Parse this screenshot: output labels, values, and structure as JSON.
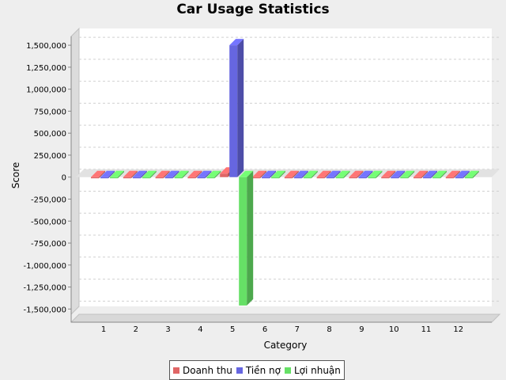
{
  "chart_data": {
    "type": "bar",
    "title": "Car Usage Statistics",
    "xlabel": "Category",
    "ylabel": "Score",
    "categories": [
      "1",
      "2",
      "3",
      "4",
      "5",
      "6",
      "7",
      "8",
      "9",
      "10",
      "11",
      "12"
    ],
    "series": [
      {
        "name": "Doanh thu",
        "color": "#e06666",
        "values": [
          0,
          0,
          0,
          0,
          40000,
          0,
          0,
          0,
          0,
          0,
          0,
          0
        ]
      },
      {
        "name": "Tiền nợ",
        "color": "#6666e0",
        "values": [
          0,
          0,
          0,
          0,
          1500000,
          0,
          0,
          0,
          0,
          0,
          0,
          0
        ]
      },
      {
        "name": "Lợi nhuận",
        "color": "#66e066",
        "values": [
          0,
          0,
          0,
          0,
          -1460000,
          0,
          0,
          0,
          0,
          0,
          0,
          0
        ]
      }
    ],
    "ylim": [
      -1500000,
      1500000
    ],
    "yticks": [
      {
        "value": 1500000,
        "label": "1,500,000"
      },
      {
        "value": 1250000,
        "label": "1,250,000"
      },
      {
        "value": 1000000,
        "label": "1,000,000"
      },
      {
        "value": 750000,
        "label": "750,000"
      },
      {
        "value": 500000,
        "label": "500,000"
      },
      {
        "value": 250000,
        "label": "250,000"
      },
      {
        "value": 0,
        "label": "0"
      },
      {
        "value": -250000,
        "label": "-250,000"
      },
      {
        "value": -500000,
        "label": "-500,000"
      },
      {
        "value": -750000,
        "label": "-750,000"
      },
      {
        "value": -1000000,
        "label": "-1,000,000"
      },
      {
        "value": -1250000,
        "label": "-1,250,000"
      },
      {
        "value": -1500000,
        "label": "-1,500,000"
      }
    ],
    "grid": true,
    "legend_position": "bottom"
  }
}
